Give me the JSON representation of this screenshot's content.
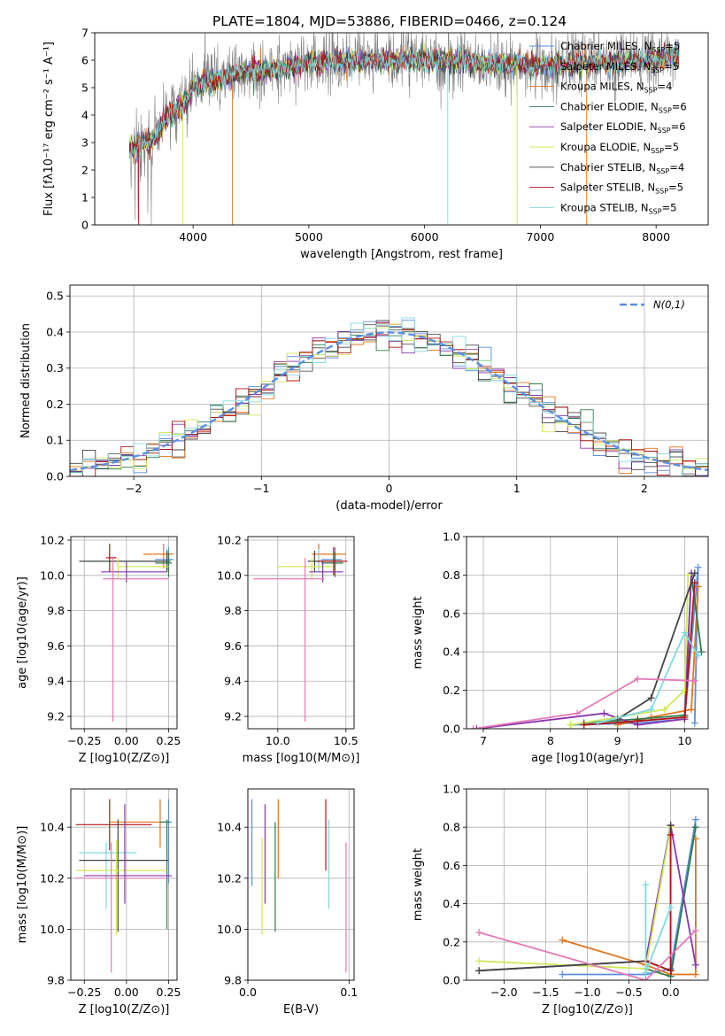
{
  "title": "PLATE=1804, MJD=53886, FIBERID=0466, z=0.124",
  "colors": {
    "chabrier_miles": "#5b8ee0",
    "salpeter_miles": "#555555",
    "kroupa_miles": "#e2741c",
    "chabrier_elodie": "#2f7a4e",
    "salpeter_elodie": "#8b35ad",
    "kroupa_elodie": "#cfe85a",
    "chabrier_stelib": "#444444",
    "salpeter_stelib": "#b01515",
    "kroupa_stelib": "#7fd9e0",
    "pink": "#e579b6",
    "gaussian": "#5b8ee0",
    "data_gray": "#808080"
  },
  "chart_data": [
    {
      "id": "spectrum",
      "type": "line",
      "title": "PLATE=1804, MJD=53886, FIBERID=0466, z=0.124",
      "xlabel": "wavelength [Angstrom, rest frame]",
      "ylabel": "Flux [fλ10⁻¹⁷ erg cm⁻² s⁻¹ A⁻¹]",
      "xlim": [
        3150,
        8450
      ],
      "ylim": [
        0,
        7
      ],
      "xticks": [
        4000,
        5000,
        6000,
        7000,
        8000
      ],
      "yticks": [
        0,
        1,
        2,
        3,
        4,
        5,
        6,
        7
      ],
      "legend_position": "top-right",
      "legend": [
        "Chabrier MILES, N_SSP=5",
        "Salpeter MILES, N_SSP=5",
        "Kroupa MILES, N_SSP=4",
        "Chabrier ELODIE, N_SSP=6",
        "Salpeter ELODIE, N_SSP=6",
        "Kroupa ELODIE, N_SSP=5",
        "Chabrier STELIB, N_SSP=4",
        "Salpeter STELIB, N_SSP=5",
        "Kroupa STELIB, N_SSP=5"
      ],
      "continuum": {
        "x": [
          3450,
          3550,
          3650,
          3700,
          3750,
          3800,
          3850,
          3900,
          3950,
          4000,
          4200,
          4500,
          4800,
          5000,
          5500,
          6000,
          6500,
          7000,
          7500,
          8000,
          8200
        ],
        "y": [
          2.8,
          2.9,
          3.1,
          3.4,
          3.7,
          4.1,
          4.2,
          4.3,
          4.5,
          5.0,
          5.3,
          5.6,
          5.7,
          5.9,
          6.0,
          6.0,
          5.9,
          5.8,
          5.9,
          6.0,
          6.2
        ]
      }
    },
    {
      "id": "residuals",
      "type": "line",
      "xlabel": "(data-model)/error",
      "ylabel": "Normed distribution",
      "xlim": [
        -2.5,
        2.5
      ],
      "ylim": [
        0,
        0.53
      ],
      "xticks": [
        -2,
        -1,
        0,
        1,
        2
      ],
      "yticks": [
        0.0,
        0.1,
        0.2,
        0.3,
        0.4,
        0.5
      ],
      "legend": [
        "N(0,1)"
      ],
      "legend_position": "top-right",
      "grid": true,
      "histogram_step": 0.1
    },
    {
      "id": "age_vs_Z",
      "type": "scatter",
      "xlabel": "Z [log10(Z/Z⊙)]",
      "ylabel": "age  [log10(age/yr)]",
      "xlim": [
        -0.33,
        0.3
      ],
      "ylim": [
        9.13,
        10.22
      ],
      "xticks": [
        -0.25,
        0.0,
        0.25
      ],
      "yticks": [
        9.2,
        9.4,
        9.6,
        9.8,
        10.0,
        10.2
      ],
      "points": [
        {
          "series": "kroupa_miles",
          "x": 0.22,
          "y": 10.12,
          "xerr": [
            0.12,
            0.06
          ],
          "yerr": [
            0.08,
            0.06
          ]
        },
        {
          "series": "chabrier_miles",
          "x": 0.25,
          "y": 10.09,
          "xerr": [
            0.08,
            0.03
          ],
          "yerr": [
            0.06,
            0.07
          ]
        },
        {
          "series": "kroupa_stelib",
          "x": 0.24,
          "y": 10.08,
          "xerr": [
            0.5,
            0.02
          ],
          "yerr": [
            0.06,
            0.07
          ]
        },
        {
          "series": "chabrier_stelib",
          "x": 0.24,
          "y": 10.08,
          "xerr": [
            0.52,
            0.02
          ],
          "yerr": [
            0.06,
            0.06
          ]
        },
        {
          "series": "chabrier_elodie",
          "x": 0.25,
          "y": 10.07,
          "xerr": [
            0.08,
            0.02
          ],
          "yerr": [
            0.08,
            0.06
          ]
        },
        {
          "series": "kroupa_elodie",
          "x": -0.05,
          "y": 10.05,
          "xerr": [
            0.0,
            0.3
          ],
          "yerr": [
            0.07,
            0.05
          ]
        },
        {
          "series": "salpeter_elodie",
          "x": 0.0,
          "y": 10.02,
          "xerr": [
            0.15,
            0.24
          ],
          "yerr": [
            0.06,
            0.06
          ]
        },
        {
          "series": "salpeter_stelib",
          "x": -0.1,
          "y": 10.1,
          "xerr": [
            0.02,
            0.04
          ],
          "yerr": [
            0.08,
            0.08
          ]
        },
        {
          "series": "pink",
          "x": -0.08,
          "y": 9.98,
          "xerr": [
            0.06,
            0.33
          ],
          "yerr": [
            0.81,
            0.12
          ]
        }
      ]
    },
    {
      "id": "age_vs_mass",
      "type": "scatter",
      "xlabel": "mass [log10(M/M⊙)]",
      "ylabel": "",
      "xlim": [
        9.78,
        10.56
      ],
      "ylim": [
        9.13,
        10.22
      ],
      "xticks": [
        10.0,
        10.5
      ],
      "yticks": [
        9.2,
        9.4,
        9.6,
        9.8,
        10.0,
        10.2
      ],
      "points": [
        {
          "series": "kroupa_miles",
          "x": 10.3,
          "y": 10.12,
          "xerr": [
            0.05,
            0.2
          ],
          "yerr": [
            0.08,
            0.06
          ]
        },
        {
          "series": "chabrier_miles",
          "x": 10.42,
          "y": 10.09,
          "xerr": [
            0.1,
            0.05
          ],
          "yerr": [
            0.06,
            0.07
          ]
        },
        {
          "series": "kroupa_stelib",
          "x": 10.3,
          "y": 10.08,
          "xerr": [
            0.08,
            0.1
          ],
          "yerr": [
            0.06,
            0.07
          ]
        },
        {
          "series": "chabrier_stelib",
          "x": 10.27,
          "y": 10.08,
          "xerr": [
            0.05,
            0.2
          ],
          "yerr": [
            0.06,
            0.06
          ]
        },
        {
          "series": "chabrier_elodie",
          "x": 10.42,
          "y": 10.07,
          "xerr": [
            0.1,
            0.06
          ],
          "yerr": [
            0.08,
            0.06
          ]
        },
        {
          "series": "kroupa_elodie",
          "x": 10.25,
          "y": 10.05,
          "xerr": [
            0.25,
            0.15
          ],
          "yerr": [
            0.07,
            0.05
          ]
        },
        {
          "series": "salpeter_elodie",
          "x": 10.33,
          "y": 10.02,
          "xerr": [
            0.1,
            0.15
          ],
          "yerr": [
            0.06,
            0.06
          ]
        },
        {
          "series": "salpeter_stelib",
          "x": 10.41,
          "y": 10.08,
          "xerr": [
            0.12,
            0.1
          ],
          "yerr": [
            0.08,
            0.08
          ]
        },
        {
          "series": "pink",
          "x": 10.2,
          "y": 9.98,
          "xerr": [
            0.38,
            0.14
          ],
          "yerr": [
            0.81,
            0.12
          ]
        }
      ]
    },
    {
      "id": "weight_vs_age",
      "type": "line",
      "xlabel": "age  [log10(age/yr)]",
      "ylabel": "mass weight",
      "xlim": [
        6.75,
        10.35
      ],
      "ylim": [
        0,
        1.0
      ],
      "xticks": [
        7,
        8,
        9,
        10
      ],
      "yticks": [
        0.0,
        0.2,
        0.4,
        0.6,
        0.8,
        1.0
      ],
      "grid": true,
      "series": [
        {
          "key": "chabrier_miles",
          "x": [
            8.3,
            9.3,
            10.0,
            10.2,
            10.15
          ],
          "y": [
            0.02,
            0.03,
            0.05,
            0.84,
            0.03
          ]
        },
        {
          "key": "kroupa_miles",
          "x": [
            9.0,
            9.5,
            10.1,
            10.2
          ],
          "y": [
            0.02,
            0.06,
            0.1,
            0.74
          ]
        },
        {
          "key": "chabrier_elodie",
          "x": [
            8.5,
            9.3,
            10.0,
            10.1,
            10.25
          ],
          "y": [
            0.03,
            0.05,
            0.07,
            0.8,
            0.4
          ]
        },
        {
          "key": "salpeter_elodie",
          "x": [
            6.9,
            8.8,
            9.3,
            10.0,
            10.1
          ],
          "y": [
            0.0,
            0.08,
            0.02,
            0.05,
            0.81
          ]
        },
        {
          "key": "kroupa_elodie",
          "x": [
            8.3,
            9.7,
            10.0,
            10.05
          ],
          "y": [
            0.02,
            0.1,
            0.2,
            0.8
          ]
        },
        {
          "key": "chabrier_stelib",
          "x": [
            9.0,
            9.5,
            10.15
          ],
          "y": [
            0.05,
            0.16,
            0.81
          ]
        },
        {
          "key": "salpeter_stelib",
          "x": [
            8.5,
            9.3,
            10.0,
            10.15
          ],
          "y": [
            0.02,
            0.04,
            0.06,
            0.76
          ]
        },
        {
          "key": "kroupa_stelib",
          "x": [
            8.7,
            9.5,
            10.0,
            10.2
          ],
          "y": [
            0.03,
            0.1,
            0.5,
            0.38
          ]
        },
        {
          "key": "pink",
          "x": [
            6.85,
            8.4,
            9.3,
            10.15
          ],
          "y": [
            0.0,
            0.08,
            0.26,
            0.25
          ]
        }
      ]
    },
    {
      "id": "mass_vs_Z",
      "type": "scatter",
      "xlabel": "Z [log10(Z/Z⊙)]",
      "ylabel": "mass [log10(M/M⊙)]",
      "xlim": [
        -0.33,
        0.3
      ],
      "ylim": [
        9.8,
        10.55
      ],
      "xticks": [
        -0.25,
        0.0,
        0.25
      ],
      "yticks": [
        9.8,
        10.0,
        10.2,
        10.4
      ],
      "points": [
        {
          "series": "salpeter_stelib",
          "x": -0.1,
          "y": 10.41,
          "xerr": [
            0.2,
            0.25
          ],
          "yerr": [
            0.1,
            0.1
          ]
        },
        {
          "series": "kroupa_miles",
          "x": 0.2,
          "y": 10.42,
          "xerr": [
            0.3,
            0.03
          ],
          "yerr": [
            0.1,
            0.09
          ]
        },
        {
          "series": "chabrier_miles",
          "x": 0.25,
          "y": 10.42,
          "xerr": [
            0.05,
            0.02
          ],
          "yerr": [
            0.24,
            0.09
          ]
        },
        {
          "series": "chabrier_elodie",
          "x": 0.24,
          "y": 10.42,
          "xerr": [
            0.04,
            0.02
          ],
          "yerr": [
            0.42,
            0.01
          ]
        },
        {
          "series": "kroupa_stelib",
          "x": -0.12,
          "y": 10.3,
          "xerr": [
            0.16,
            0.18
          ],
          "yerr": [
            0.22,
            0.04
          ]
        },
        {
          "series": "chabrier_stelib",
          "x": -0.05,
          "y": 10.27,
          "xerr": [
            0.23,
            0.3
          ],
          "yerr": [
            0.28,
            0.16
          ]
        },
        {
          "series": "kroupa_elodie",
          "x": -0.06,
          "y": 10.23,
          "xerr": [
            0.24,
            0.3
          ],
          "yerr": [
            0.25,
            0.12
          ]
        },
        {
          "series": "salpeter_elodie",
          "x": -0.01,
          "y": 10.21,
          "xerr": [
            0.24,
            0.28
          ],
          "yerr": [
            0.11,
            0.28
          ]
        },
        {
          "series": "pink",
          "x": -0.09,
          "y": 10.2,
          "xerr": [
            0.22,
            0.34
          ],
          "yerr": [
            0.37,
            0.14
          ]
        }
      ]
    },
    {
      "id": "mass_vs_ebv",
      "type": "scatter",
      "xlabel": "E(B-V)",
      "ylabel": "",
      "xlim": [
        0.0,
        0.105
      ],
      "ylim": [
        9.8,
        10.55
      ],
      "xticks": [
        0.0,
        0.1
      ],
      "yticks": [
        9.8,
        10.0,
        10.2,
        10.4
      ],
      "points": [
        {
          "series": "chabrier_miles",
          "x": 0.004,
          "y": 10.33,
          "xerr": [
            0,
            0
          ],
          "yerr": [
            0.16,
            0.18
          ]
        },
        {
          "series": "kroupa_elodie",
          "x": 0.014,
          "y": 10.2,
          "xerr": [
            0,
            0
          ],
          "yerr": [
            0.22,
            0.16
          ]
        },
        {
          "series": "salpeter_elodie",
          "x": 0.017,
          "y": 10.3,
          "xerr": [
            0,
            0
          ],
          "yerr": [
            0.2,
            0.19
          ]
        },
        {
          "series": "chabrier_elodie",
          "x": 0.027,
          "y": 10.2,
          "xerr": [
            0,
            0
          ],
          "yerr": [
            0.21,
            0.22
          ]
        },
        {
          "series": "kroupa_miles",
          "x": 0.03,
          "y": 10.35,
          "xerr": [
            0,
            0
          ],
          "yerr": [
            0.15,
            0.16
          ]
        },
        {
          "series": "salpeter_stelib",
          "x": 0.077,
          "y": 10.35,
          "xerr": [
            0,
            0
          ],
          "yerr": [
            0.12,
            0.16
          ]
        },
        {
          "series": "kroupa_stelib",
          "x": 0.08,
          "y": 10.25,
          "xerr": [
            0,
            0
          ],
          "yerr": [
            0.17,
            0.18
          ]
        },
        {
          "series": "pink",
          "x": 0.097,
          "y": 10.05,
          "xerr": [
            0,
            0
          ],
          "yerr": [
            0.22,
            0.29
          ]
        }
      ]
    },
    {
      "id": "weight_vs_Z",
      "type": "line",
      "xlabel": "Z [log10(Z/Z⊙)]",
      "ylabel": "mass weight",
      "xlim": [
        -2.45,
        0.45
      ],
      "ylim": [
        0,
        1.0
      ],
      "xticks": [
        -2.0,
        -1.5,
        -1.0,
        -0.5,
        0.0
      ],
      "yticks": [
        0.0,
        0.2,
        0.4,
        0.6,
        0.8,
        1.0
      ],
      "grid": true,
      "series": [
        {
          "key": "chabrier_miles",
          "x": [
            -1.3,
            -0.3,
            0.0,
            0.3
          ],
          "y": [
            0.03,
            0.03,
            0.06,
            0.84
          ]
        },
        {
          "key": "kroupa_miles",
          "x": [
            -1.3,
            -0.3,
            0.0,
            0.3,
            0.3
          ],
          "y": [
            0.21,
            0.08,
            0.03,
            0.03,
            0.74
          ]
        },
        {
          "key": "chabrier_elodie",
          "x": [
            -0.3,
            0.0,
            0.3
          ],
          "y": [
            0.06,
            0.02,
            0.8
          ]
        },
        {
          "key": "salpeter_elodie",
          "x": [
            -2.3,
            -0.3,
            0.0,
            0.3
          ],
          "y": [
            0.05,
            0.1,
            0.81,
            0.08
          ]
        },
        {
          "key": "kroupa_elodie",
          "x": [
            -2.3,
            -0.3,
            0.0
          ],
          "y": [
            0.1,
            0.06,
            0.8
          ]
        },
        {
          "key": "chabrier_stelib",
          "x": [
            -2.3,
            -0.3,
            0.0,
            0.0
          ],
          "y": [
            0.05,
            0.1,
            0.05,
            0.81
          ]
        },
        {
          "key": "salpeter_stelib",
          "x": [
            -0.3,
            0.0,
            0.0
          ],
          "y": [
            0.1,
            0.05,
            0.76
          ]
        },
        {
          "key": "kroupa_stelib",
          "x": [
            -0.3,
            -0.3,
            0.0
          ],
          "y": [
            0.5,
            0.04,
            0.38
          ]
        },
        {
          "key": "pink",
          "x": [
            -2.3,
            -0.3,
            0.3
          ],
          "y": [
            0.25,
            0.0,
            0.26
          ]
        }
      ]
    }
  ]
}
